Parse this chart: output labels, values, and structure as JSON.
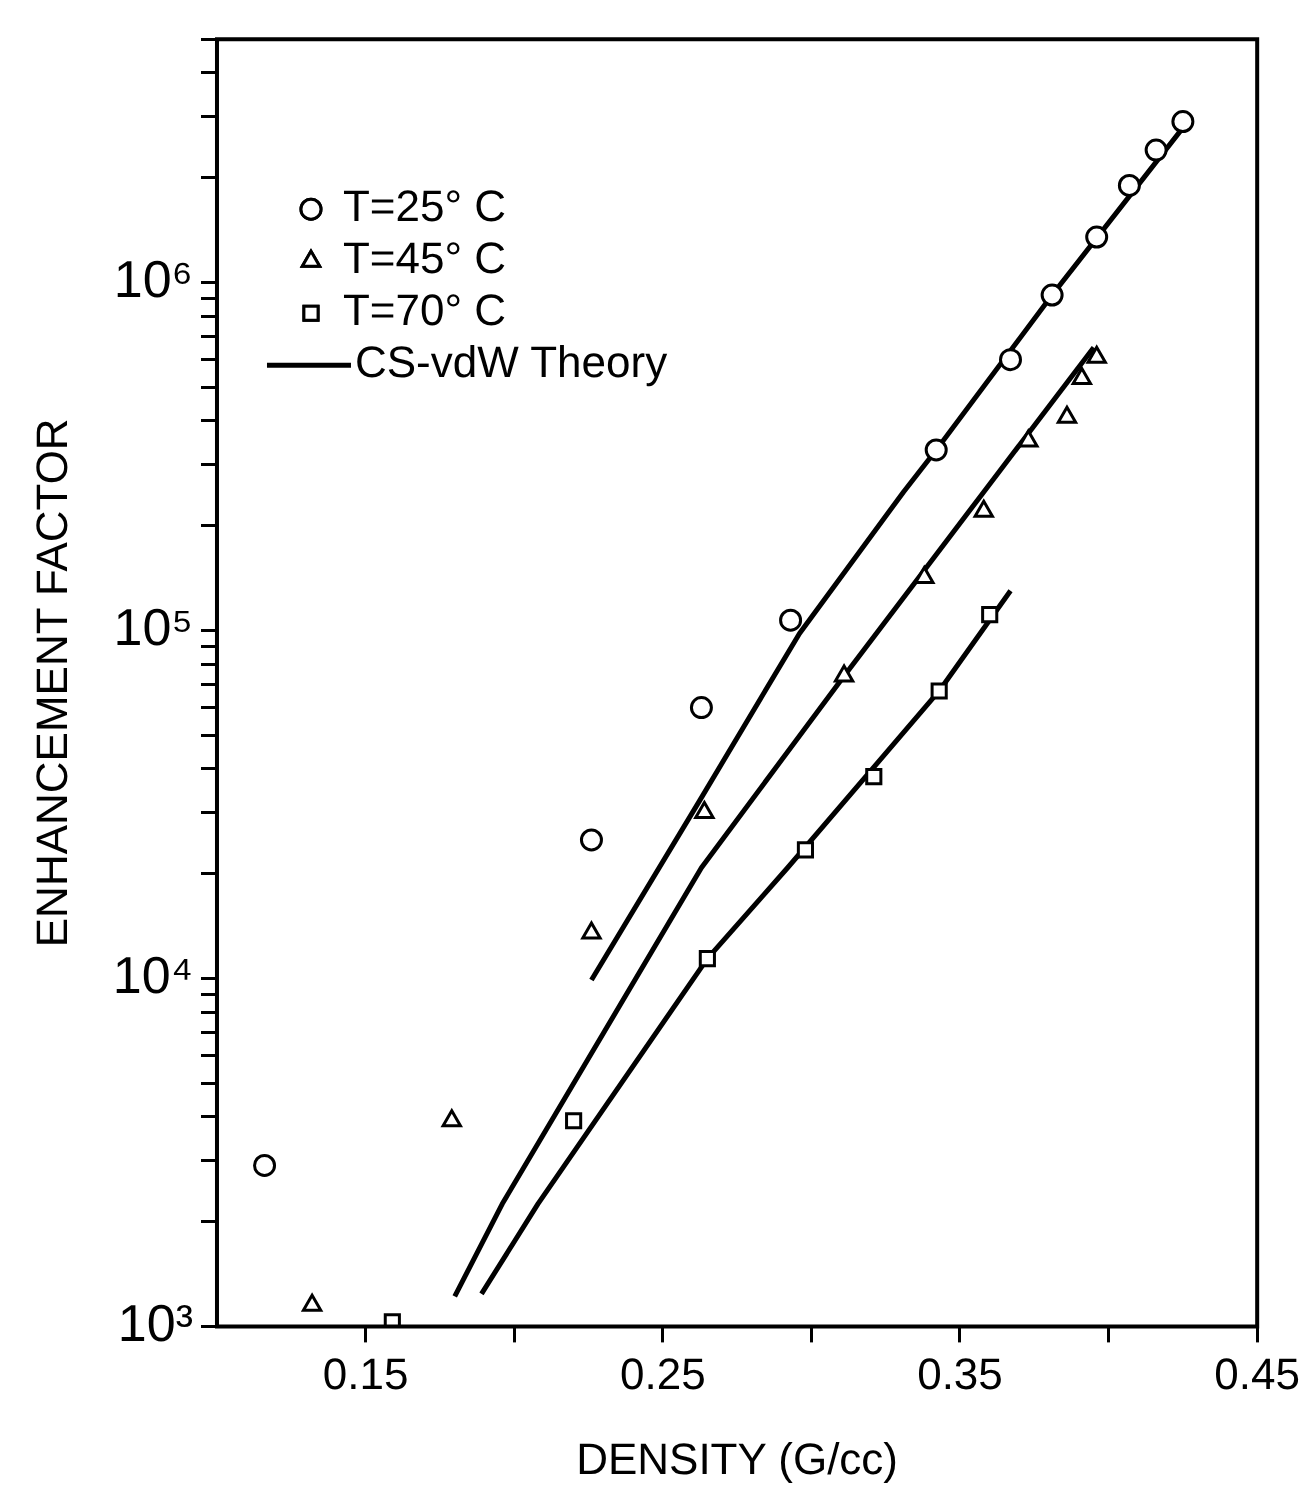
{
  "chart_data": {
    "type": "scatter",
    "xlabel": "DENSITY (G/cc)",
    "ylabel": "ENHANCEMENT FACTOR",
    "log": "y",
    "grid": false,
    "legend": "top left",
    "xlim": [
      0.1,
      0.45
    ],
    "xticks": [
      0.15,
      {
        "value": 0.2,
        "label": null
      },
      0.25,
      {
        "value": 0.3,
        "label": null
      },
      0.35,
      {
        "value": 0.4,
        "label": null
      },
      0.45
    ],
    "ylim": [
      1000,
      5000000
    ],
    "yticks": [
      {
        "value": 1000,
        "label": "10³"
      },
      {
        "value": 2000,
        "label": null
      },
      {
        "value": 3000,
        "label": null
      },
      {
        "value": 4000,
        "label": null
      },
      {
        "value": 5000,
        "label": null
      },
      {
        "value": 6000,
        "label": null
      },
      {
        "value": 7000,
        "label": null
      },
      {
        "value": 8000,
        "label": null
      },
      {
        "value": 9000,
        "label": null
      },
      {
        "value": 10000,
        "label": "10⁴"
      },
      {
        "value": 20000,
        "label": null
      },
      {
        "value": 30000,
        "label": null
      },
      {
        "value": 40000,
        "label": null
      },
      {
        "value": 50000,
        "label": null
      },
      {
        "value": 60000,
        "label": null
      },
      {
        "value": 70000,
        "label": null
      },
      {
        "value": 80000,
        "label": null
      },
      {
        "value": 90000,
        "label": null
      },
      {
        "value": 100000,
        "label": "10⁵"
      },
      {
        "value": 200000,
        "label": null
      },
      {
        "value": 300000,
        "label": null
      },
      {
        "value": 400000,
        "label": null
      },
      {
        "value": 500000,
        "label": null
      },
      {
        "value": 600000,
        "label": null
      },
      {
        "value": 700000,
        "label": null
      },
      {
        "value": 800000,
        "label": null
      },
      {
        "value": 900000,
        "label": null
      },
      {
        "value": 1000000,
        "label": "10⁶"
      },
      {
        "value": 2000000,
        "label": null
      },
      {
        "value": 3000000,
        "label": null
      },
      {
        "value": 4000000,
        "label": null
      },
      {
        "value": 5000000,
        "label": null
      }
    ],
    "series": [
      {
        "name": "T=25° C",
        "marker": "circle",
        "color": "#000000",
        "x": [
          0.116,
          0.226,
          0.263,
          0.293,
          0.342,
          0.367,
          0.381,
          0.396,
          0.407,
          0.416,
          0.425
        ],
        "values": [
          2900,
          25000,
          60000,
          107000,
          330000,
          600000,
          920000,
          1350000,
          1900000,
          2400000,
          2900000
        ]
      },
      {
        "name": "T=45° C",
        "marker": "triangle",
        "color": "#000000",
        "x": [
          0.132,
          0.179,
          0.226,
          0.264,
          0.311,
          0.338,
          0.358,
          0.373,
          0.386,
          0.391,
          0.396
        ],
        "values": [
          1150,
          3900,
          13500,
          30000,
          74000,
          142000,
          220000,
          350000,
          410000,
          530000,
          610000
        ]
      },
      {
        "name": "T=70° C",
        "marker": "square",
        "color": "#000000",
        "x": [
          0.159,
          0.22,
          0.265,
          0.298,
          0.321,
          0.343,
          0.36
        ],
        "values": [
          1030,
          3900,
          11400,
          23400,
          38000,
          67000,
          111000
        ]
      },
      {
        "name": "CS-vdW Theory",
        "type": "line",
        "marker": "none",
        "color": "#000000",
        "x": [
          0.226,
          0.262,
          0.296,
          0.331,
          0.342,
          0.381,
          0.428
        ],
        "values": [
          9900,
          32000,
          98000,
          250000,
          330000,
          920000,
          3000000
        ]
      },
      {
        "type": "line",
        "marker": "none",
        "color": "#000000",
        "x": [
          0.18,
          0.196,
          0.263,
          0.311,
          0.358,
          0.395
        ],
        "values": [
          1220,
          2250,
          20800,
          74000,
          250000,
          650000
        ]
      },
      {
        "type": "line",
        "marker": "none",
        "color": "#000000",
        "x": [
          0.189,
          0.208,
          0.265,
          0.292,
          0.343,
          0.367
        ],
        "values": [
          1240,
          2250,
          11400,
          20800,
          67000,
          130000
        ]
      }
    ]
  }
}
